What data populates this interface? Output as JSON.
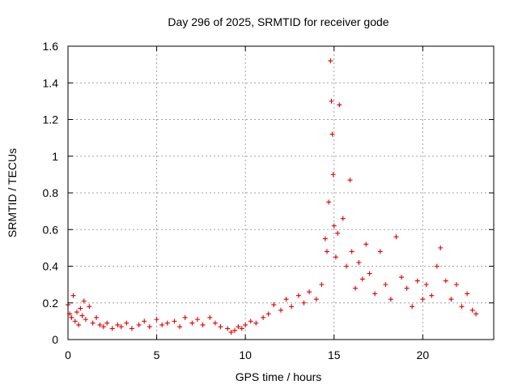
{
  "chart_data": {
    "type": "scatter",
    "title": "Day 296 of 2025, SRMTID for receiver gode",
    "xlabel": "GPS time / hours",
    "ylabel": "SRMTID / TECUs",
    "xlim": [
      0,
      24
    ],
    "ylim": [
      0,
      1.6
    ],
    "xticks": [
      0,
      5,
      10,
      15,
      20
    ],
    "xtick_labels": [
      "0",
      "5",
      "10",
      "15",
      "20"
    ],
    "yticks": [
      0,
      0.2,
      0.4,
      0.6,
      0.8,
      1.0,
      1.2,
      1.4,
      1.6
    ],
    "ytick_labels": [
      "0",
      "0.2",
      "0.4",
      "0.6",
      "0.8",
      "1",
      "1.2",
      "1.4",
      "1.6"
    ],
    "grid": true,
    "marker": "+",
    "series": [
      {
        "name": "SRMTID",
        "color": "#e00000",
        "x": [
          0.0,
          0.1,
          0.2,
          0.3,
          0.4,
          0.5,
          0.6,
          0.7,
          0.8,
          0.9,
          1.0,
          1.2,
          1.4,
          1.6,
          1.8,
          2.0,
          2.2,
          2.5,
          2.8,
          3.0,
          3.3,
          3.6,
          4.0,
          4.3,
          4.6,
          5.0,
          5.3,
          5.6,
          6.0,
          6.3,
          6.6,
          7.0,
          7.3,
          7.6,
          8.0,
          8.3,
          8.6,
          9.0,
          9.2,
          9.4,
          9.6,
          9.8,
          10.0,
          10.3,
          10.6,
          11.0,
          11.3,
          11.6,
          12.0,
          12.3,
          12.6,
          13.0,
          13.3,
          13.6,
          14.0,
          14.3,
          14.5,
          14.6,
          14.7,
          14.8,
          14.85,
          14.9,
          14.95,
          15.0,
          15.1,
          15.2,
          15.3,
          15.5,
          15.7,
          15.9,
          16.0,
          16.2,
          16.4,
          16.6,
          16.8,
          17.0,
          17.3,
          17.6,
          17.9,
          18.2,
          18.5,
          18.8,
          19.1,
          19.4,
          19.7,
          20.0,
          20.2,
          20.5,
          20.8,
          21.0,
          21.3,
          21.6,
          21.9,
          22.2,
          22.5,
          22.8,
          23.0
        ],
        "y": [
          0.19,
          0.14,
          0.12,
          0.24,
          0.1,
          0.15,
          0.08,
          0.17,
          0.13,
          0.21,
          0.11,
          0.18,
          0.09,
          0.12,
          0.08,
          0.07,
          0.09,
          0.06,
          0.08,
          0.07,
          0.09,
          0.06,
          0.08,
          0.1,
          0.07,
          0.11,
          0.08,
          0.09,
          0.1,
          0.07,
          0.12,
          0.09,
          0.11,
          0.08,
          0.12,
          0.09,
          0.07,
          0.06,
          0.04,
          0.05,
          0.07,
          0.06,
          0.08,
          0.1,
          0.09,
          0.12,
          0.14,
          0.19,
          0.16,
          0.22,
          0.18,
          0.24,
          0.2,
          0.26,
          0.22,
          0.3,
          0.55,
          0.48,
          0.75,
          1.52,
          1.3,
          1.12,
          0.9,
          0.62,
          0.45,
          0.58,
          1.28,
          0.66,
          0.4,
          0.87,
          0.48,
          0.28,
          0.42,
          0.33,
          0.52,
          0.36,
          0.25,
          0.48,
          0.3,
          0.22,
          0.56,
          0.34,
          0.28,
          0.18,
          0.32,
          0.22,
          0.3,
          0.24,
          0.4,
          0.5,
          0.32,
          0.22,
          0.3,
          0.18,
          0.25,
          0.16,
          0.14
        ]
      }
    ]
  }
}
